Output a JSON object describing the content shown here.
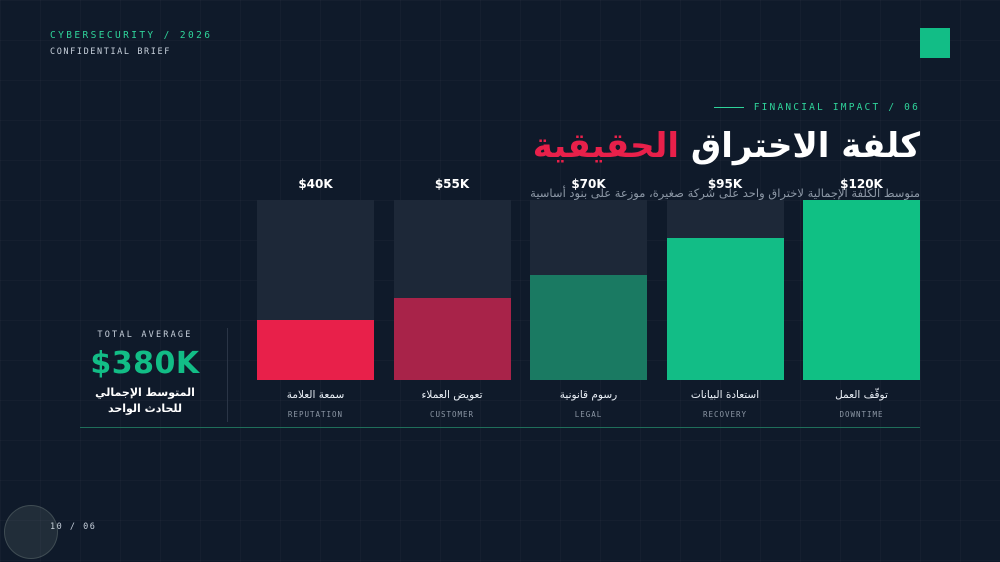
{
  "header": {
    "kicker": "CYBERSECURITY / 2026",
    "brief": "CONFIDENTIAL BRIEF"
  },
  "section_label": "FINANCIAL IMPACT / 06",
  "title": {
    "main": "كلفة الاختراق",
    "accent": "الحقيقية"
  },
  "subtitle": "متوسط الكلفة الإجمالية لاختراق واحد على شركة صغيرة، موزعة على بنود أساسية",
  "total": {
    "label": "TOTAL AVERAGE",
    "value": "$380K",
    "description": "المتوسط الإجمالي للحادث الواحد"
  },
  "colors": {
    "background": "#0f1a2a",
    "red": "#e8204a",
    "dark_red": "#a82349",
    "dark_green": "#1a7a62",
    "green": "#12bd86",
    "bright_green": "#10c084",
    "track": "#1d2838"
  },
  "chart_data": {
    "type": "bar",
    "ylim": [
      0,
      120
    ],
    "categories_ar": [
      "سمعة العلامة",
      "تعويض العملاء",
      "رسوم قانونية",
      "استعادة البيانات",
      "توقّف العمل"
    ],
    "categories_en": [
      "REPUTATION",
      "CUSTOMER",
      "LEGAL",
      "RECOVERY",
      "DOWNTIME"
    ],
    "values": [
      40,
      55,
      70,
      95,
      120
    ],
    "value_labels": [
      "$40K",
      "$55K",
      "$70K",
      "$95K",
      "$120K"
    ],
    "bar_colors": [
      "#e8204a",
      "#a82349",
      "#1a7a62",
      "#12bd86",
      "#10c084"
    ]
  },
  "footer": {
    "page": "10 / 06"
  }
}
